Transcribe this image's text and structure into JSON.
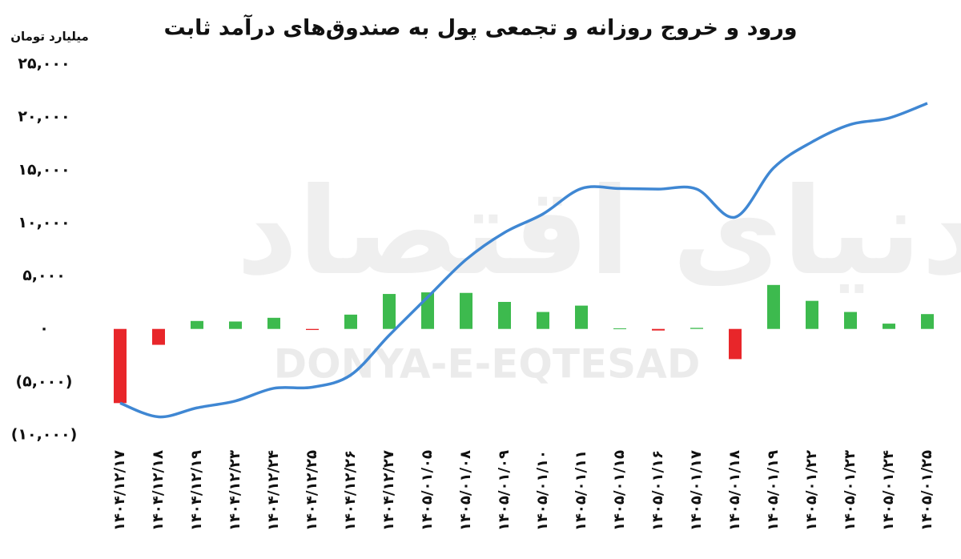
{
  "chart_data": {
    "type": "combo",
    "title": "ورود و خروج روزانه و تجمعی پول به صندوق‌های درآمد ثابت",
    "y_axis_label": "میلیارد تومان",
    "watermark": "DONYA-E-EQTESAD",
    "watermark_logo": "دنیای اقتصاد",
    "categories": [
      "۱۴۰۴/۱۲/۱۷",
      "۱۴۰۴/۱۲/۱۸",
      "۱۴۰۴/۱۲/۱۹",
      "۱۴۰۴/۱۲/۲۳",
      "۱۴۰۴/۱۲/۲۴",
      "۱۴۰۴/۱۲/۲۵",
      "۱۴۰۴/۱۲/۲۶",
      "۱۴۰۴/۱۲/۲۷",
      "۱۴۰۵/۰۱/۰۵",
      "۱۴۰۵/۰۱/۰۸",
      "۱۴۰۵/۰۱/۰۹",
      "۱۴۰۵/۰۱/۱۰",
      "۱۴۰۵/۰۱/۱۱",
      "۱۴۰۵/۰۱/۱۵",
      "۱۴۰۵/۰۱/۱۶",
      "۱۴۰۵/۰۱/۱۷",
      "۱۴۰۵/۰۱/۱۸",
      "۱۴۰۵/۰۱/۱۹",
      "۱۴۰۵/۰۱/۲۲",
      "۱۴۰۵/۰۱/۲۳",
      "۱۴۰۵/۰۱/۲۴",
      "۱۴۰۵/۰۱/۲۵"
    ],
    "series": [
      {
        "type": "bar",
        "color": "#3dba4e",
        "negative_color": "#e8262a",
        "values": [
          -7000,
          -1500,
          750,
          700,
          1050,
          -100,
          1350,
          3300,
          3450,
          3400,
          2550,
          1600,
          2200,
          50,
          -150,
          100,
          -2850,
          4150,
          2650,
          1600,
          500,
          1400
        ]
      },
      {
        "type": "line",
        "color": "#3f87d3",
        "values": [
          -7000,
          -8300,
          -7450,
          -6800,
          -5600,
          -5500,
          -4350,
          -600,
          3000,
          6550,
          9100,
          10850,
          13250,
          13250,
          13200,
          13200,
          10550,
          15200,
          17650,
          19300,
          19900,
          21300
        ]
      }
    ],
    "ylim": [
      -10000,
      25000
    ],
    "yticks": [
      {
        "value": -10000,
        "label": "(۱۰,۰۰۰)"
      },
      {
        "value": -5000,
        "label": "(۵,۰۰۰)"
      },
      {
        "value": 0,
        "label": "۰"
      },
      {
        "value": 5000,
        "label": "۵,۰۰۰"
      },
      {
        "value": 10000,
        "label": "۱۰,۰۰۰"
      },
      {
        "value": 15000,
        "label": "۱۵,۰۰۰"
      },
      {
        "value": 20000,
        "label": "۲۰,۰۰۰"
      },
      {
        "value": 25000,
        "label": "۲۵,۰۰۰"
      }
    ],
    "grid": false
  }
}
